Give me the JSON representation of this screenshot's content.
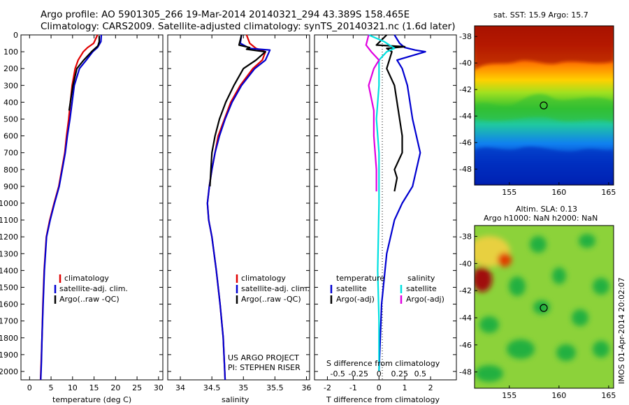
{
  "header": {
    "line1": "Argo profile: AO 5901305_266 19-Mar-2014 20140321_294 43.389S 158.465E",
    "line2": "Climatology: CARS2009. Satellite-adjusted climatology: synTS_20140321.nc (1.6d later)"
  },
  "colors": {
    "climatology": "#e00000",
    "satellite": "#0000d0",
    "argo": "#000000",
    "satellite_sal": "#00e0e0",
    "argo_sal": "#e000e0"
  },
  "chart_data": [
    {
      "type": "line",
      "id": "temperature",
      "xlabel": "temperature (deg C)",
      "ylabel": "",
      "xlim": [
        -2,
        31
      ],
      "ylim": [
        2050,
        0
      ],
      "xticks": [
        "0",
        "5",
        "10",
        "15",
        "20",
        "25",
        "30"
      ],
      "yticks": [
        "0",
        "100",
        "200",
        "300",
        "400",
        "500",
        "600",
        "700",
        "800",
        "900",
        "1000",
        "1100",
        "1200",
        "1300",
        "1400",
        "1500",
        "1600",
        "1700",
        "1800",
        "1900",
        "2000"
      ],
      "legend": [
        "climatology",
        "satellite-adj. clim.",
        "Argo(..raw -QC)"
      ],
      "series": [
        {
          "name": "climatology",
          "color": "#e00000",
          "x": [
            15.8,
            14.9,
            13.5,
            12.5,
            11.3,
            10.6,
            9.9,
            9.5,
            9.1,
            8.6,
            8.2,
            7.5,
            6.8,
            5.7,
            4.7,
            3.9,
            3.4,
            3.1,
            2.9,
            2.7,
            2.55
          ],
          "y": [
            0,
            50,
            75,
            100,
            150,
            200,
            300,
            400,
            500,
            600,
            700,
            800,
            900,
            1000,
            1100,
            1200,
            1400,
            1600,
            1800,
            1950,
            2050
          ]
        },
        {
          "name": "satellite-adj. clim.",
          "color": "#0000d0",
          "x": [
            16.7,
            16.6,
            15.8,
            14.7,
            13.2,
            11.6,
            10.4,
            9.9,
            9.4,
            8.8,
            8.3,
            7.6,
            6.9,
            5.8,
            4.8,
            3.95,
            3.45,
            3.15,
            2.9,
            2.75,
            2.6
          ],
          "y": [
            0,
            40,
            75,
            100,
            150,
            200,
            300,
            400,
            500,
            600,
            700,
            800,
            900,
            1000,
            1100,
            1200,
            1400,
            1600,
            1800,
            1950,
            2050
          ]
        },
        {
          "name": "Argo(..raw -QC)",
          "color": "#000000",
          "x": [
            16.2,
            16.2,
            15.9,
            14.4,
            12.6,
            11.0,
            10.1,
            9.6,
            9.2
          ],
          "y": [
            5,
            40,
            65,
            100,
            150,
            200,
            300,
            380,
            450
          ]
        }
      ]
    },
    {
      "type": "line",
      "id": "salinity",
      "xlabel": "salinity",
      "ylabel": "",
      "xlim": [
        33.8,
        36.05
      ],
      "ylim": [
        2050,
        0
      ],
      "xticks": [
        "34",
        "34.5",
        "35",
        "35.5",
        "36"
      ],
      "legend": [
        "climatology",
        "satellite-adj. clim.",
        "Argo(..raw -QC)"
      ],
      "annotations": [
        "US ARGO PROJECT",
        "PI: STEPHEN RISER"
      ],
      "series": [
        {
          "name": "climatology",
          "color": "#e00000",
          "x": [
            35.05,
            35.1,
            35.2,
            35.35,
            35.3,
            35.15,
            34.95,
            34.8,
            34.7,
            34.6,
            34.55,
            34.5,
            34.46,
            34.43,
            34.45,
            34.5,
            34.57,
            34.63,
            34.68,
            34.71
          ],
          "y": [
            0,
            50,
            80,
            100,
            150,
            200,
            300,
            400,
            500,
            600,
            700,
            800,
            900,
            1000,
            1100,
            1200,
            1400,
            1600,
            1800,
            2050
          ]
        },
        {
          "name": "satellite-adj. clim.",
          "color": "#0000d0",
          "x": [
            34.97,
            34.95,
            35.1,
            35.42,
            35.35,
            35.18,
            34.97,
            34.82,
            34.71,
            34.62,
            34.55,
            34.5,
            34.46,
            34.43,
            34.45,
            34.5,
            34.57,
            34.63,
            34.68,
            34.71
          ],
          "y": [
            0,
            50,
            80,
            90,
            150,
            200,
            300,
            400,
            500,
            600,
            700,
            800,
            900,
            1000,
            1100,
            1200,
            1400,
            1600,
            1800,
            2050
          ]
        },
        {
          "name": "Argo(..raw -QC)",
          "color": "#000000",
          "x": [
            34.97,
            34.93,
            35.1,
            35.05,
            35.35,
            35.2,
            35.0,
            34.85,
            34.72,
            34.62,
            34.55,
            34.5,
            34.47
          ],
          "y": [
            0,
            60,
            75,
            85,
            100,
            150,
            200,
            300,
            400,
            500,
            600,
            700,
            900
          ]
        }
      ]
    },
    {
      "type": "line",
      "id": "difference",
      "xlabel": "T difference from climatology",
      "xlabel2": "S difference from climatology",
      "xlim": [
        -2.5,
        3
      ],
      "ylim": [
        2050,
        0
      ],
      "xticks": [
        "-2",
        "-1",
        "0",
        "1",
        "2"
      ],
      "xticks_s": [
        "-0.5",
        "-0.25",
        "0",
        "0.25",
        "0.5"
      ],
      "legend": {
        "temperature_title": "temperature",
        "salinity_title": "salinity",
        "items": [
          "satellite",
          "Argo(-adj)",
          "satellite",
          "Argo(-adj)"
        ]
      },
      "series": [
        {
          "name": "satellite",
          "color": "#0000d0",
          "x": [
            0.6,
            0.8,
            1.0,
            1.4,
            1.8,
            0.7,
            0.9,
            1.1,
            1.3,
            1.6,
            1.3,
            0.9,
            0.6,
            0.3,
            0.1,
            0.0
          ],
          "y": [
            0,
            50,
            75,
            90,
            100,
            150,
            200,
            300,
            500,
            700,
            900,
            1000,
            1100,
            1300,
            1600,
            2000
          ]
        },
        {
          "name": "Argo(-adj)",
          "color": "#000000",
          "x": [
            0.3,
            -0.1,
            1.0,
            0.3,
            0.5,
            0.3,
            0.6,
            0.8,
            0.9,
            0.9,
            0.6,
            0.7,
            0.6
          ],
          "y": [
            0,
            60,
            70,
            80,
            100,
            200,
            300,
            500,
            600,
            700,
            800,
            850,
            930
          ]
        },
        {
          "name": "satellite",
          "color": "#00e0e0",
          "x": [
            -0.4,
            0.2,
            0.6,
            0.3,
            0.0,
            0.0,
            -0.1,
            0.0,
            0.0,
            -0.05,
            0.0,
            0.0
          ],
          "y": [
            0,
            40,
            80,
            100,
            150,
            300,
            500,
            700,
            1000,
            1400,
            1700,
            2000
          ]
        },
        {
          "name": "Argo(-adj)",
          "color": "#e000e0",
          "x": [
            -0.4,
            -0.5,
            -0.3,
            0.0,
            -0.2,
            -0.4,
            -0.2,
            -0.2,
            -0.1,
            -0.1
          ],
          "y": [
            0,
            60,
            100,
            150,
            200,
            300,
            450,
            600,
            800,
            930
          ]
        }
      ]
    }
  ],
  "maps": [
    {
      "id": "sst",
      "title": "sat. SST: 15.9  Argo: 15.7",
      "yticks": [
        "-38",
        "-40",
        "-42",
        "-44",
        "-46",
        "-48"
      ],
      "xticks": [
        "155",
        "160",
        "165"
      ],
      "marker": [
        158.465,
        -43.389
      ]
    },
    {
      "id": "sla",
      "title1": "Altim. SLA: 0.13",
      "title2": "Argo h1000: NaN h2000: NaN",
      "yticks": [
        "-38",
        "-40",
        "-42",
        "-44",
        "-46",
        "-48"
      ],
      "xticks": [
        "155",
        "160",
        "165"
      ],
      "marker": [
        158.465,
        -43.389
      ],
      "side_label": "IMOS 01-Apr-2014 20:02:07"
    }
  ]
}
